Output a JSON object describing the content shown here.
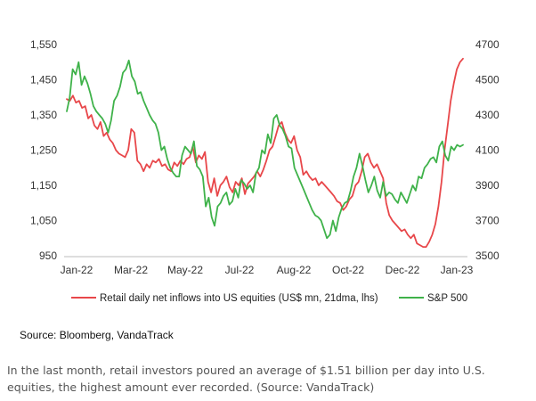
{
  "chart_data": {
    "type": "line",
    "x_labels": [
      "Jan-22",
      "Mar-22",
      "May-22",
      "Jul-22",
      "Aug-22",
      "Oct-22",
      "Dec-22",
      "Jan-23"
    ],
    "y_left": {
      "ticks": [
        950,
        1050,
        1150,
        1250,
        1350,
        1450,
        1550
      ],
      "ylim": [
        950,
        1550
      ]
    },
    "y_right": {
      "ticks": [
        3500,
        3700,
        3900,
        4100,
        4300,
        4500,
        4700
      ],
      "ylim": [
        3500,
        4700
      ]
    },
    "series": [
      {
        "name": "Retail daily net inflows into US equities (US$ mn, 21dma, lhs)",
        "axis": "left",
        "color": "#e8474a",
        "values": [
          1395,
          1390,
          1405,
          1385,
          1390,
          1370,
          1375,
          1340,
          1350,
          1320,
          1310,
          1330,
          1290,
          1300,
          1280,
          1270,
          1250,
          1240,
          1235,
          1230,
          1250,
          1310,
          1300,
          1220,
          1210,
          1190,
          1210,
          1200,
          1220,
          1215,
          1225,
          1205,
          1210,
          1195,
          1190,
          1215,
          1205,
          1220,
          1210,
          1225,
          1230,
          1260,
          1215,
          1235,
          1225,
          1245,
          1160,
          1130,
          1170,
          1120,
          1150,
          1160,
          1175,
          1145,
          1130,
          1160,
          1150,
          1170,
          1125,
          1155,
          1165,
          1175,
          1190,
          1175,
          1195,
          1220,
          1250,
          1260,
          1290,
          1320,
          1330,
          1300,
          1280,
          1270,
          1290,
          1250,
          1230,
          1180,
          1190,
          1175,
          1165,
          1170,
          1150,
          1160,
          1150,
          1140,
          1130,
          1120,
          1105,
          1100,
          1080,
          1090,
          1110,
          1120,
          1150,
          1160,
          1190,
          1230,
          1240,
          1215,
          1200,
          1210,
          1190,
          1170,
          1100,
          1065,
          1050,
          1040,
          1030,
          1020,
          1025,
          1010,
          1000,
          1010,
          985,
          980,
          975,
          975,
          990,
          1010,
          1040,
          1090,
          1160,
          1250,
          1320,
          1390,
          1440,
          1480,
          1500,
          1510
        ]
      },
      {
        "name": "S&P 500",
        "axis": "right",
        "color": "#3fb24a",
        "values": [
          4320,
          4400,
          4560,
          4530,
          4600,
          4470,
          4520,
          4480,
          4420,
          4350,
          4320,
          4300,
          4280,
          4250,
          4200,
          4270,
          4380,
          4410,
          4460,
          4540,
          4560,
          4610,
          4520,
          4490,
          4420,
          4430,
          4380,
          4340,
          4300,
          4270,
          4250,
          4200,
          4100,
          4120,
          4050,
          4000,
          3970,
          3950,
          3950,
          4070,
          4120,
          4100,
          4080,
          4150,
          4010,
          3990,
          3950,
          3780,
          3830,
          3720,
          3670,
          3780,
          3800,
          3840,
          3860,
          3790,
          3810,
          3880,
          3830,
          3930,
          3910,
          3880,
          3900,
          3860,
          3970,
          4000,
          4100,
          4080,
          4190,
          4140,
          4280,
          4300,
          4240,
          4220,
          4180,
          4120,
          4110,
          4000,
          3960,
          3920,
          3880,
          3840,
          3800,
          3760,
          3730,
          3720,
          3700,
          3650,
          3600,
          3620,
          3700,
          3640,
          3720,
          3770,
          3800,
          3810,
          3870,
          3950,
          4000,
          4080,
          4010,
          3930,
          3860,
          3900,
          3950,
          3870,
          3830,
          3920,
          3840,
          3860,
          3850,
          3820,
          3800,
          3860,
          3830,
          3800,
          3850,
          3900,
          3870,
          3950,
          3940,
          4000,
          4020,
          4050,
          4060,
          4030,
          4120,
          4150,
          4070,
          4040,
          4120,
          4100,
          4130,
          4120,
          4130
        ]
      }
    ],
    "legend_position": "bottom",
    "grid": false
  },
  "source_text": "Source: Bloomberg, VandaTrack",
  "caption_text": "In the last month, retail investors poured an average of $1.51 billion per day into U.S. equities, the highest amount ever recorded. (Source: VandaTrack)"
}
